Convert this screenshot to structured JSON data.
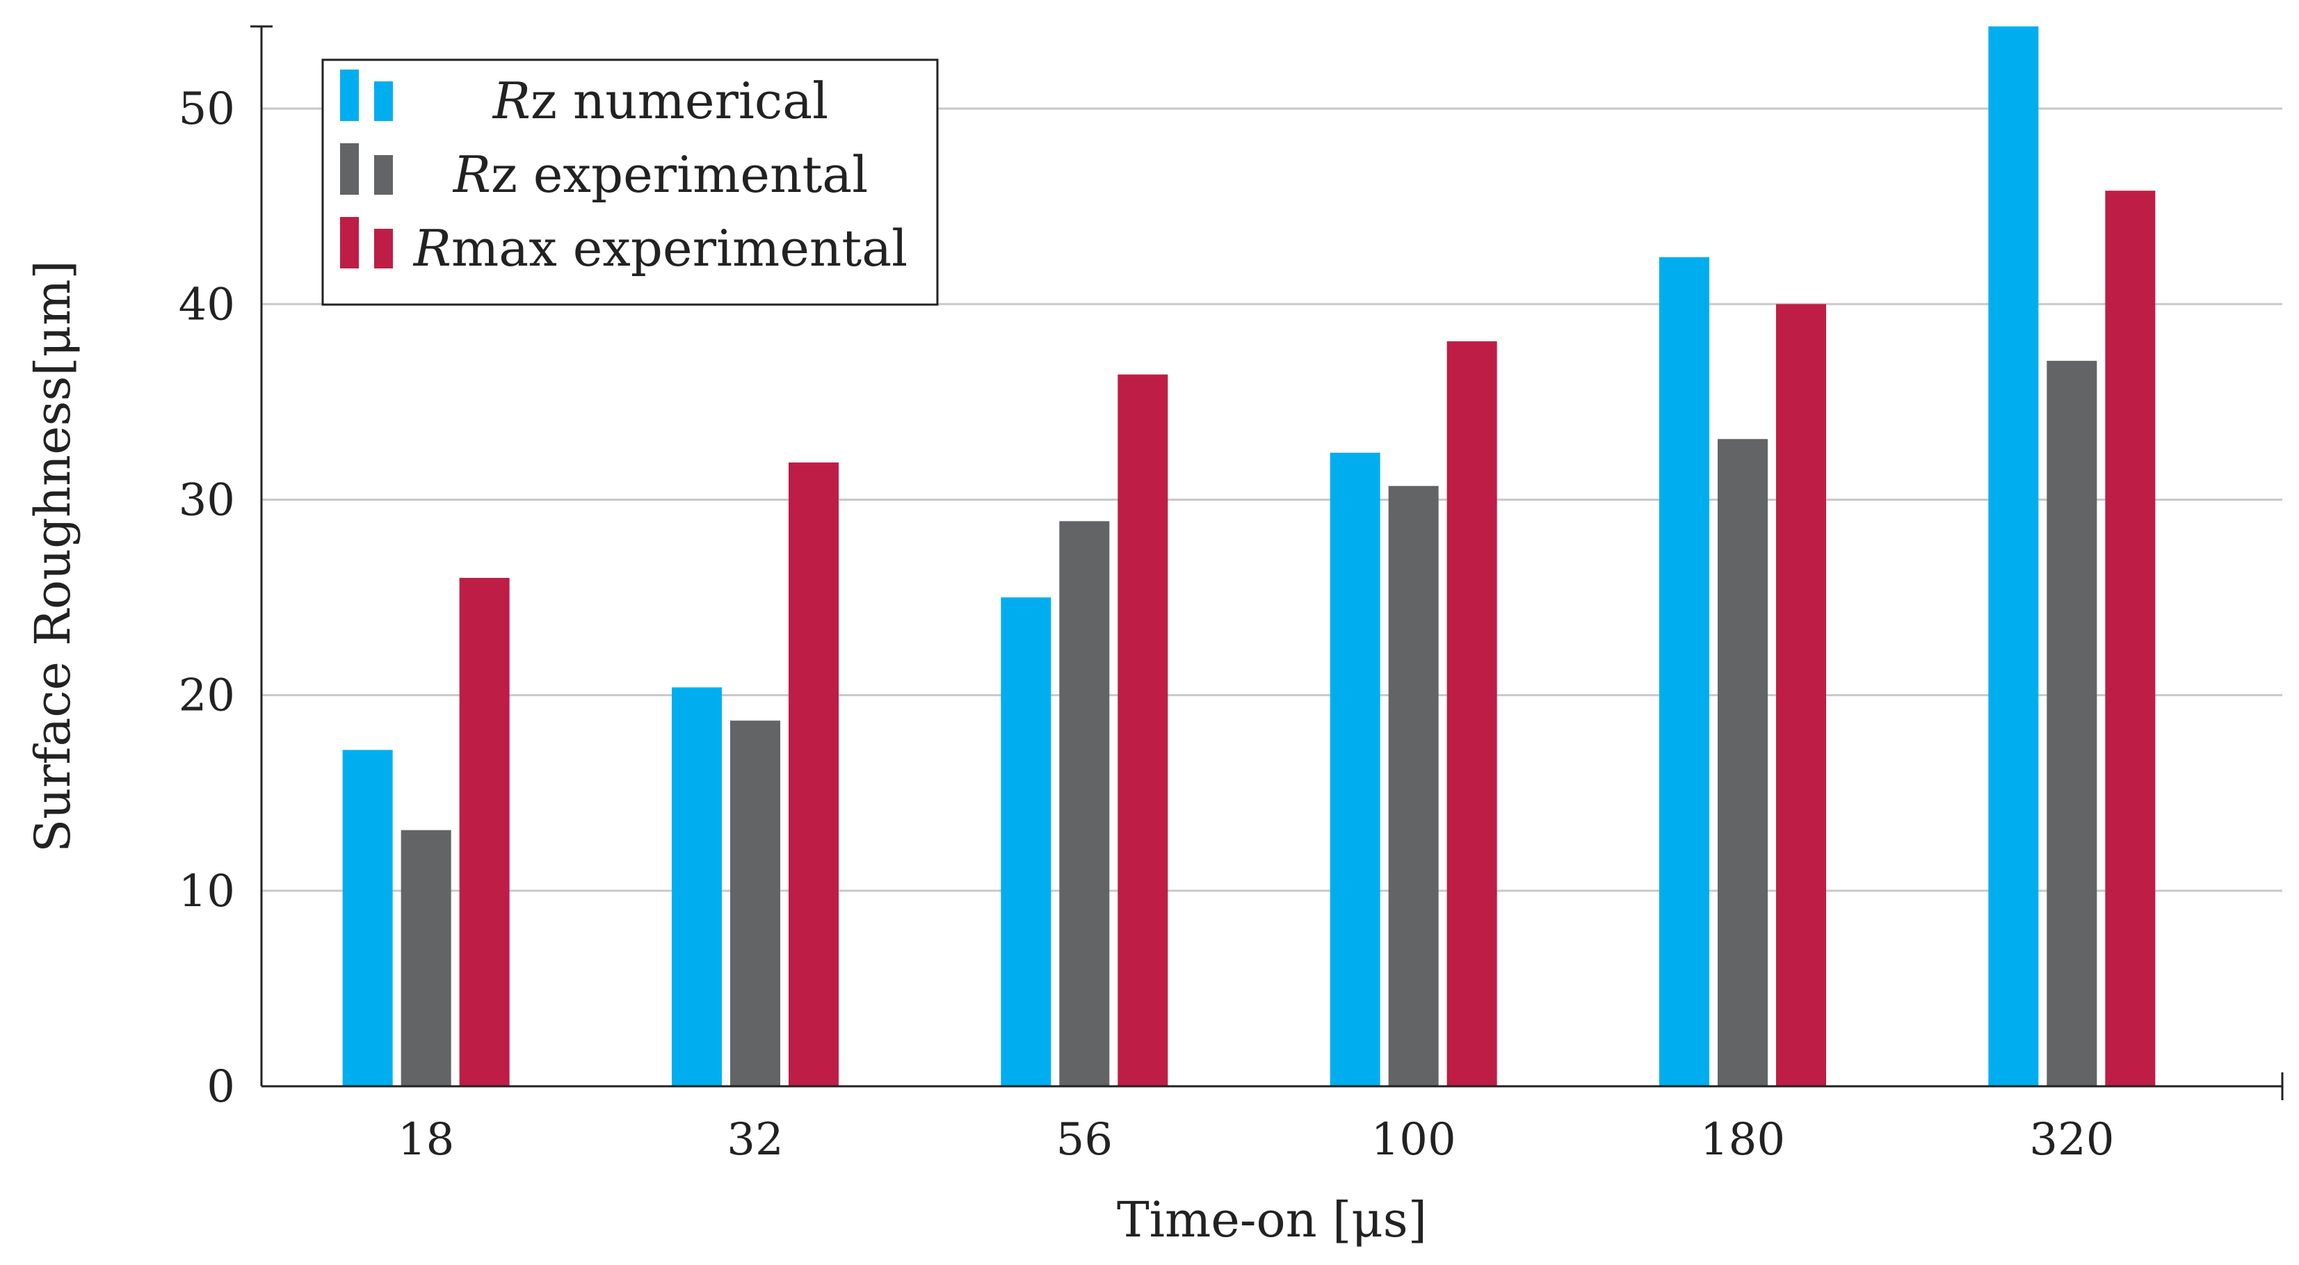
{
  "chart_data": {
    "type": "bar",
    "title": "",
    "xlabel": "Time-on [μs]",
    "ylabel": "Surface Roughness[μm]",
    "ylim": [
      0,
      54.2
    ],
    "yticks": [
      "0",
      "10",
      "20",
      "30",
      "40",
      "50"
    ],
    "grid": "horizontal",
    "legend_position": "top-left",
    "categories": [
      "18",
      "32",
      "56",
      "100",
      "180",
      "320"
    ],
    "series": [
      {
        "name": "Rz numerical",
        "name_italic": "R",
        "name_rest": "z numerical",
        "color": "#00AEEF",
        "values": [
          17.2,
          20.4,
          25.0,
          32.4,
          42.4,
          54.2
        ]
      },
      {
        "name": "Rz experimental",
        "name_italic": "R",
        "name_rest": "z experimental",
        "color": "#636466",
        "values": [
          13.1,
          18.7,
          28.9,
          30.7,
          33.1,
          37.1
        ]
      },
      {
        "name": "Rmax experimental",
        "name_italic": "R",
        "name_rest": "max experimental",
        "color": "#BE1E45",
        "values": [
          26.0,
          31.9,
          36.4,
          38.1,
          40.0,
          45.8
        ]
      }
    ]
  }
}
